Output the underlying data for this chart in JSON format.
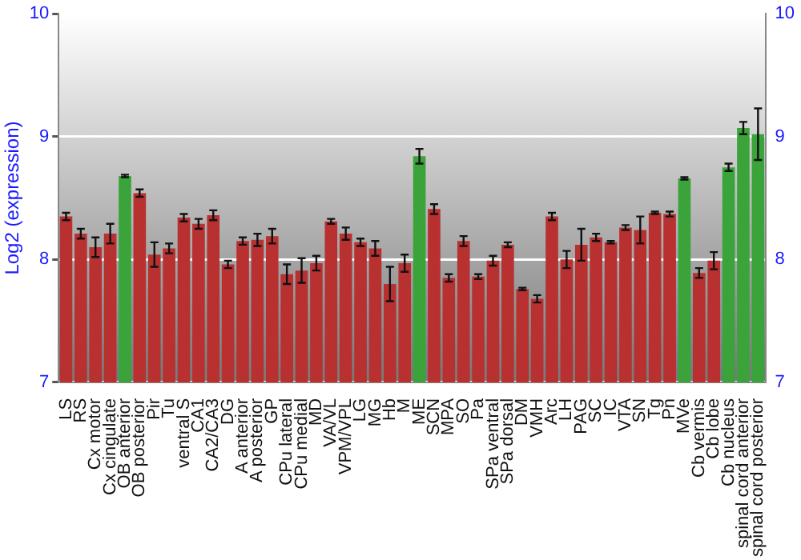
{
  "chart_data": {
    "type": "bar",
    "ylabel": "Log2 (expression)",
    "categories": [
      "LS",
      "RS",
      "Cx motor",
      "Cx cingulate",
      "OB anterior",
      "OB posterior",
      "Pir",
      "Tu",
      "ventral S",
      "CA1",
      "CA2/CA3",
      "DG",
      "A anterior",
      "A posterior",
      "GP",
      "CPu lateral",
      "CPu medial",
      "MD",
      "VA/VL",
      "VPM/VPL",
      "LG",
      "MG",
      "Hb",
      "M",
      "ME",
      "SCN",
      "MPA",
      "SO",
      "Pa",
      "SPa ventral",
      "SPa dorsal",
      "DM",
      "VMH",
      "Arc",
      "LH",
      "PAG",
      "SC",
      "IC",
      "VTA",
      "SN",
      "Tg",
      "Pn",
      "MVe",
      "Cb vermis",
      "Cb lobe",
      "Cb nucleus",
      "spinal cord anterior",
      "spinal cord posterior"
    ],
    "values": [
      8.35,
      8.21,
      8.1,
      8.21,
      8.68,
      8.54,
      8.04,
      8.09,
      8.34,
      8.29,
      8.36,
      7.96,
      8.15,
      8.16,
      8.19,
      7.88,
      7.91,
      7.97,
      8.31,
      8.21,
      8.14,
      8.09,
      7.8,
      7.97,
      8.84,
      8.41,
      7.85,
      8.15,
      7.86,
      7.99,
      8.12,
      7.76,
      7.68,
      8.35,
      8.0,
      8.12,
      8.18,
      8.14,
      8.26,
      8.24,
      8.38,
      8.37,
      8.66,
      7.89,
      7.99,
      8.75,
      9.07,
      9.02
    ],
    "errors": [
      0.03,
      0.04,
      0.08,
      0.08,
      0.01,
      0.03,
      0.1,
      0.04,
      0.03,
      0.04,
      0.04,
      0.03,
      0.03,
      0.05,
      0.06,
      0.08,
      0.1,
      0.06,
      0.02,
      0.05,
      0.03,
      0.06,
      0.14,
      0.07,
      0.06,
      0.04,
      0.03,
      0.04,
      0.02,
      0.04,
      0.02,
      0.01,
      0.03,
      0.03,
      0.07,
      0.13,
      0.03,
      0.01,
      0.02,
      0.11,
      0.01,
      0.02,
      0.01,
      0.04,
      0.07,
      0.03,
      0.05,
      0.21
    ],
    "colors": [
      "#b83030",
      "#b83030",
      "#b83030",
      "#b83030",
      "#3aa33a",
      "#b83030",
      "#b83030",
      "#b83030",
      "#b83030",
      "#b83030",
      "#b83030",
      "#b83030",
      "#b83030",
      "#b83030",
      "#b83030",
      "#b83030",
      "#b83030",
      "#b83030",
      "#b83030",
      "#b83030",
      "#b83030",
      "#b83030",
      "#b83030",
      "#b83030",
      "#3aa33a",
      "#b83030",
      "#b83030",
      "#b83030",
      "#b83030",
      "#b83030",
      "#b83030",
      "#b83030",
      "#b83030",
      "#b83030",
      "#b83030",
      "#b83030",
      "#b83030",
      "#b83030",
      "#b83030",
      "#b83030",
      "#b83030",
      "#b83030",
      "#3aa33a",
      "#b83030",
      "#b83030",
      "#3aa33a",
      "#3aa33a",
      "#3aa33a"
    ],
    "ylim": [
      7,
      10
    ],
    "yticks": [
      7,
      8,
      9,
      10
    ],
    "y2lim": [
      7,
      10
    ],
    "y2ticks": [
      7,
      8,
      9,
      10
    ],
    "grid": "y",
    "legend": false
  }
}
